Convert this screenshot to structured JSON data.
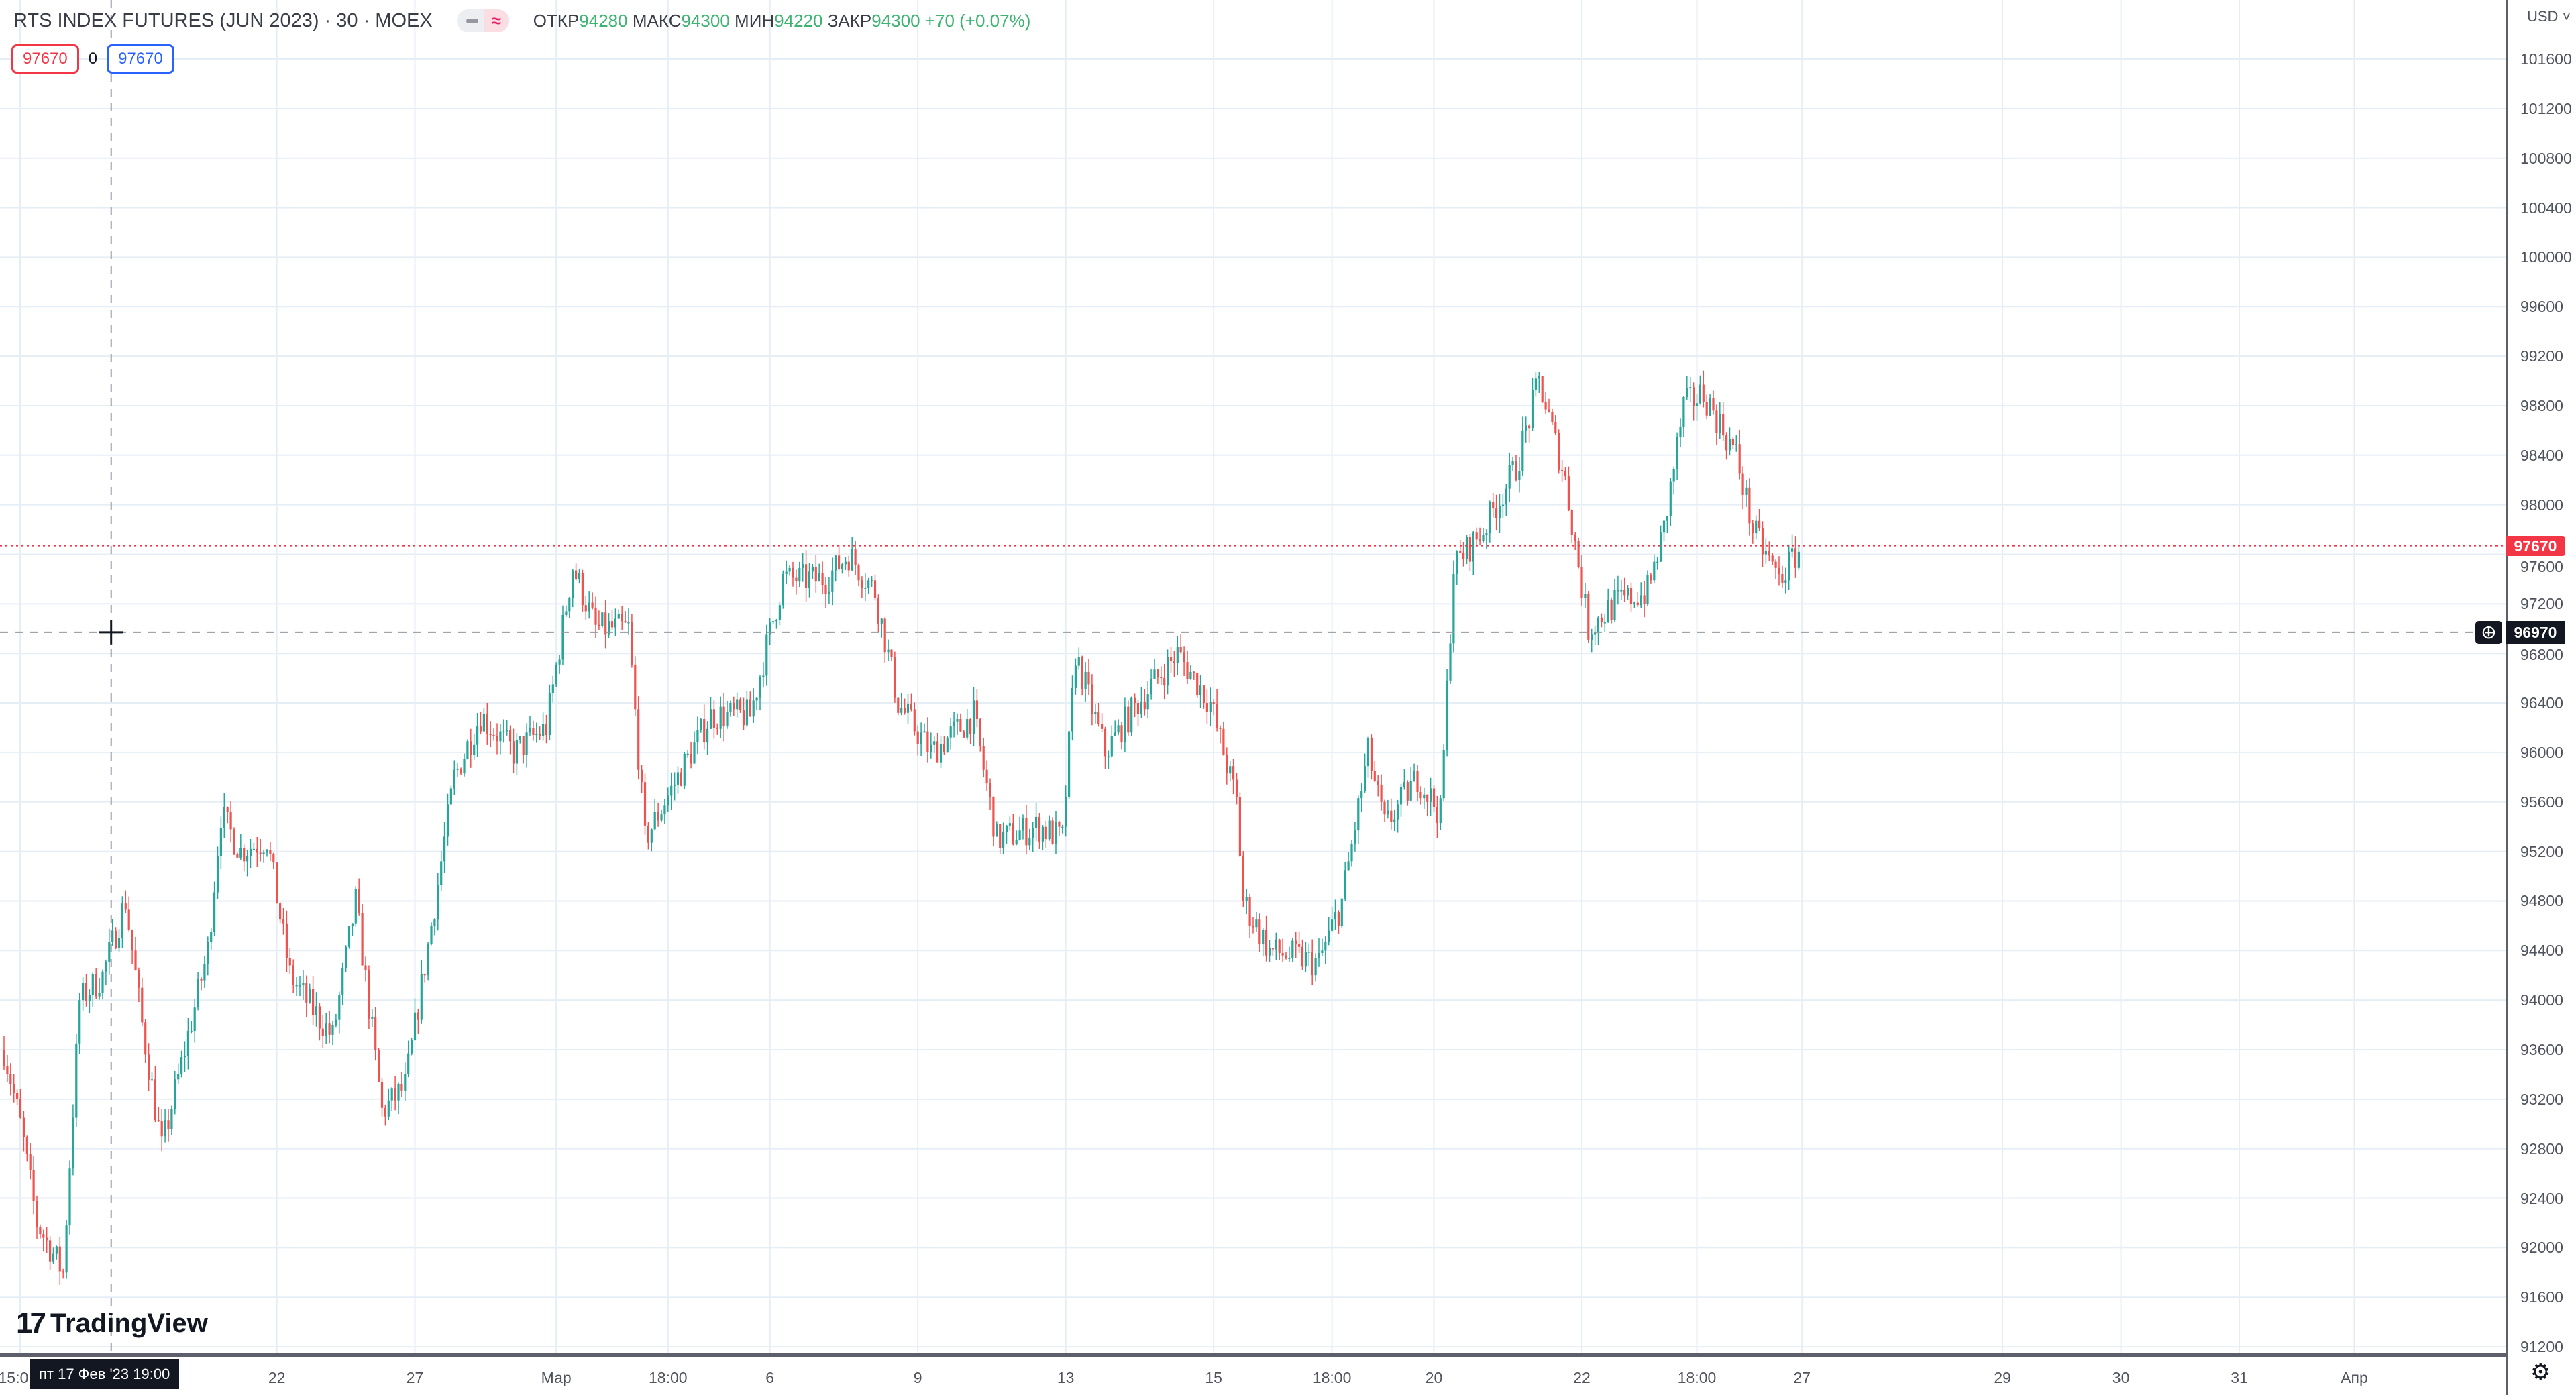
{
  "header": {
    "title": "RTS INDEX FUTURES (JUN 2023) · 30 · MOEX",
    "toggle_icon": "≈",
    "ohlc": {
      "open_label": "ОТКР",
      "open": "94280",
      "high_label": "МАКС",
      "high": "94300",
      "low_label": "МИН",
      "low": "94220",
      "close_label": "ЗАКР",
      "close": "94300",
      "change": "+70 (+0.07%)"
    }
  },
  "badges": {
    "sell": "97670",
    "spread": "0",
    "buy": "97670"
  },
  "price_axis": {
    "currency": "USD ˅",
    "last_price": "97670",
    "crosshair_price": "96970"
  },
  "time_axis": {
    "crosshair_label": "пт 17 Фев '23   19:00",
    "partial_label": "15:0"
  },
  "logo": "TradingView",
  "colors": {
    "up": "#26a69a",
    "down": "#ef5350",
    "grid": "#e6eef5",
    "last": "#f23645"
  },
  "chart_data": {
    "type": "candlestick",
    "title": "RTS INDEX FUTURES (JUN 2023) · 30 · MOEX",
    "ylim": [
      91200,
      101800
    ],
    "yticks": [
      101600,
      101200,
      100800,
      100400,
      100000,
      99600,
      99200,
      98800,
      98400,
      98000,
      97600,
      97200,
      96800,
      96400,
      96000,
      95600,
      95200,
      94800,
      94400,
      94000,
      93600,
      93200,
      92800,
      92400,
      92000,
      91600,
      91200
    ],
    "xticks": [
      {
        "bar": 83,
        "label": "22"
      },
      {
        "bar": 125,
        "label": "27"
      },
      {
        "bar": 168,
        "label": "Мар"
      },
      {
        "bar": 202,
        "label": "18:00"
      },
      {
        "bar": 233,
        "label": "6"
      },
      {
        "bar": 278,
        "label": "9"
      },
      {
        "bar": 323,
        "label": "13"
      },
      {
        "bar": 368,
        "label": "15"
      },
      {
        "bar": 404,
        "label": "18:00"
      },
      {
        "bar": 435,
        "label": "20"
      },
      {
        "bar": 480,
        "label": "22"
      },
      {
        "bar": 515,
        "label": "18:00"
      },
      {
        "bar": 547,
        "label": "27"
      },
      {
        "bar": 608,
        "label": "29"
      },
      {
        "bar": 644,
        "label": "30"
      },
      {
        "bar": 680,
        "label": "31"
      },
      {
        "bar": 715,
        "label": "Апр"
      }
    ],
    "close_waypoints": [
      [
        0,
        93600
      ],
      [
        5,
        93000
      ],
      [
        10,
        92200
      ],
      [
        18,
        91800
      ],
      [
        23,
        94000
      ],
      [
        30,
        94200
      ],
      [
        37,
        94800
      ],
      [
        42,
        93800
      ],
      [
        48,
        92800
      ],
      [
        55,
        93600
      ],
      [
        62,
        94400
      ],
      [
        66,
        95500
      ],
      [
        72,
        95200
      ],
      [
        80,
        95300
      ],
      [
        87,
        94200
      ],
      [
        92,
        94000
      ],
      [
        100,
        93700
      ],
      [
        107,
        94800
      ],
      [
        115,
        93100
      ],
      [
        122,
        93300
      ],
      [
        130,
        94600
      ],
      [
        137,
        95800
      ],
      [
        145,
        96300
      ],
      [
        155,
        96000
      ],
      [
        165,
        96200
      ],
      [
        173,
        97500
      ],
      [
        180,
        97000
      ],
      [
        190,
        97000
      ],
      [
        195,
        95300
      ],
      [
        205,
        95800
      ],
      [
        215,
        96300
      ],
      [
        227,
        96300
      ],
      [
        237,
        97400
      ],
      [
        250,
        97400
      ],
      [
        257,
        97600
      ],
      [
        265,
        97300
      ],
      [
        272,
        96400
      ],
      [
        282,
        96000
      ],
      [
        295,
        96300
      ],
      [
        302,
        95300
      ],
      [
        315,
        95400
      ],
      [
        322,
        95300
      ],
      [
        326,
        96800
      ],
      [
        335,
        96000
      ],
      [
        345,
        96400
      ],
      [
        357,
        96800
      ],
      [
        367,
        96400
      ],
      [
        375,
        95600
      ],
      [
        377,
        94800
      ],
      [
        385,
        94400
      ],
      [
        400,
        94300
      ],
      [
        407,
        94800
      ],
      [
        415,
        96000
      ],
      [
        420,
        95400
      ],
      [
        430,
        95800
      ],
      [
        437,
        95500
      ],
      [
        441,
        97500
      ],
      [
        450,
        97800
      ],
      [
        460,
        98300
      ],
      [
        467,
        99000
      ],
      [
        475,
        98200
      ],
      [
        482,
        97000
      ],
      [
        490,
        97200
      ],
      [
        500,
        97300
      ],
      [
        505,
        97800
      ],
      [
        511,
        98800
      ],
      [
        517,
        98900
      ],
      [
        527,
        98400
      ],
      [
        532,
        97800
      ],
      [
        540,
        97400
      ],
      [
        547,
        97670
      ]
    ],
    "last_price": 97670,
    "crosshair": {
      "bar": 33,
      "price": 96970
    }
  }
}
